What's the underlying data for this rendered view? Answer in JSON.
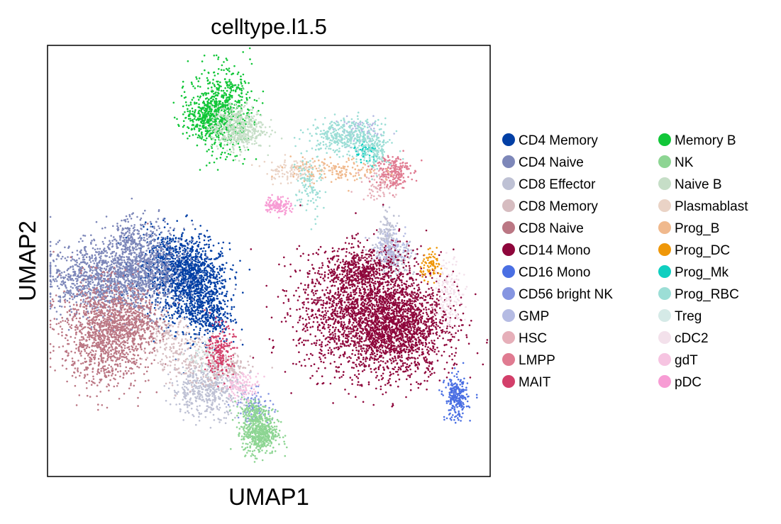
{
  "chart_data": {
    "type": "scatter",
    "title": "celltype.l1.5",
    "xlabel": "UMAP1",
    "ylabel": "UMAP2",
    "xlim": [
      0,
      100
    ],
    "ylim": [
      0,
      100
    ],
    "ticks": "none",
    "grid": false,
    "legend": {
      "placement": "right",
      "columns": 2
    },
    "series": [
      {
        "name": "CD4 Memory",
        "color": "#023fa5",
        "clusters": [
          [
            33,
            44,
            4,
            5,
            1000
          ],
          [
            28,
            49,
            4,
            4,
            600
          ],
          [
            37,
            37,
            2.5,
            3,
            200
          ]
        ]
      },
      {
        "name": "CD4 Naive",
        "color": "#7d87b9",
        "clusters": [
          [
            11,
            46,
            6,
            4,
            900
          ],
          [
            21,
            48,
            5,
            5,
            900
          ],
          [
            19,
            56,
            2,
            2,
            100
          ]
        ]
      },
      {
        "name": "CD8 Effector",
        "color": "#bec1d4",
        "clusters": [
          [
            36,
            20,
            4,
            3,
            500
          ],
          [
            78,
            51,
            2.5,
            2,
            200
          ],
          [
            77,
            57,
            1,
            2,
            100
          ]
        ]
      },
      {
        "name": "CD8 Memory",
        "color": "#d6bcc0",
        "clusters": [
          [
            32,
            27,
            4,
            3,
            200
          ],
          [
            27,
            33,
            2.5,
            2,
            100
          ],
          [
            40,
            25,
            3,
            2,
            150
          ]
        ]
      },
      {
        "name": "CD8 Naive",
        "color": "#bb7784",
        "clusters": [
          [
            13,
            33,
            5,
            6,
            1200
          ],
          [
            19,
            36,
            3,
            3,
            300
          ]
        ]
      },
      {
        "name": "CD14 Mono",
        "color": "#8e063b",
        "clusters": [
          [
            73,
            38,
            8,
            7,
            2400
          ],
          [
            80,
            33,
            5.5,
            5,
            800
          ],
          [
            71,
            48,
            4,
            2.5,
            300
          ]
        ]
      },
      {
        "name": "CD16 Mono",
        "color": "#4a6fe3",
        "clusters": [
          [
            92.5,
            18,
            1.3,
            2.5,
            250
          ]
        ]
      },
      {
        "name": "CD56 bright NK",
        "color": "#8595e1",
        "clusters": [
          [
            47,
            16,
            2,
            2,
            100
          ]
        ]
      },
      {
        "name": "GMP",
        "color": "#b5bbe3",
        "clusters": [
          [
            78,
            53,
            2,
            2,
            100
          ],
          [
            71,
            80,
            3,
            1.5,
            80
          ]
        ]
      },
      {
        "name": "HSC",
        "color": "#e6afb9",
        "clusters": [
          [
            75,
            68,
            2,
            2,
            80
          ]
        ]
      },
      {
        "name": "LMPP",
        "color": "#e07b91",
        "clusters": [
          [
            78,
            71,
            2,
            2,
            200
          ]
        ]
      },
      {
        "name": "MAIT",
        "color": "#d33f6a",
        "clusters": [
          [
            39,
            29,
            1.5,
            3,
            200
          ]
        ]
      },
      {
        "name": "Memory B",
        "color": "#11c638",
        "clusters": [
          [
            39,
            85,
            3.5,
            5,
            700
          ],
          [
            36,
            83,
            2.5,
            2,
            200
          ]
        ]
      },
      {
        "name": "NK",
        "color": "#8dd593",
        "clusters": [
          [
            48,
            10,
            2,
            2.5,
            500
          ],
          [
            46,
            15,
            1.5,
            1.5,
            100
          ]
        ]
      },
      {
        "name": "Naive B",
        "color": "#c6dec7",
        "clusters": [
          [
            43,
            81,
            3,
            2.5,
            500
          ]
        ]
      },
      {
        "name": "Plasmablast",
        "color": "#ead3c6",
        "clusters": [
          [
            55,
            71,
            3,
            1.5,
            120
          ]
        ]
      },
      {
        "name": "Prog_B",
        "color": "#f0b98d",
        "clusters": [
          [
            65,
            71,
            5,
            1.5,
            150
          ]
        ]
      },
      {
        "name": "Prog_DC",
        "color": "#ef9708",
        "clusters": [
          [
            87,
            49,
            1.3,
            1.5,
            80
          ]
        ]
      },
      {
        "name": "Prog_Mk",
        "color": "#0fcfc0",
        "clusters": [
          [
            72,
            75,
            1.5,
            1.5,
            50
          ]
        ]
      },
      {
        "name": "Prog_RBC",
        "color": "#9cded6",
        "clusters": [
          [
            67,
            79,
            4,
            2,
            350
          ],
          [
            74,
            76,
            1.5,
            2.5,
            150
          ],
          [
            59,
            67,
            1.5,
            4,
            100
          ]
        ]
      },
      {
        "name": "Treg",
        "color": "#d5eae7",
        "clusters": [
          [
            35,
            28,
            2,
            2,
            50
          ]
        ]
      },
      {
        "name": "cDC2",
        "color": "#f3e1eb",
        "clusters": [
          [
            91,
            42,
            1.5,
            4,
            150
          ]
        ]
      },
      {
        "name": "gdT",
        "color": "#f6c4e1",
        "clusters": [
          [
            44,
            21,
            2,
            1.5,
            120
          ]
        ]
      },
      {
        "name": "pDC",
        "color": "#f79cd4",
        "clusters": [
          [
            52,
            63,
            1.5,
            1,
            120
          ]
        ]
      }
    ]
  }
}
